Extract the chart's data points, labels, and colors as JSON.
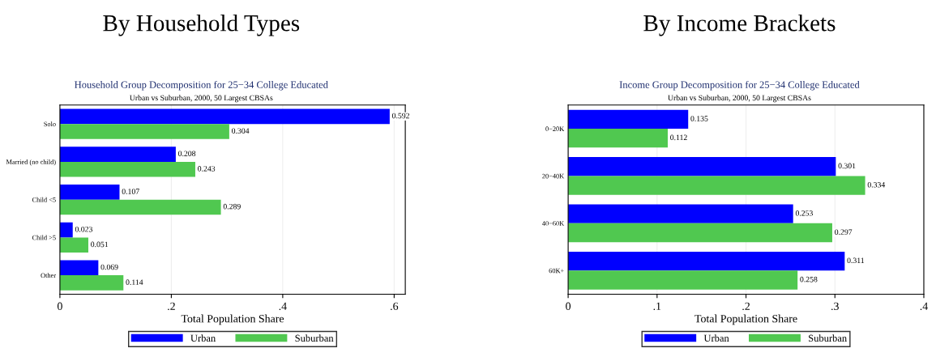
{
  "chart_data": [
    {
      "type": "bar",
      "orientation": "horizontal",
      "title": "By Household Types",
      "subtitle": "Household Group Decomposition for 25−34 College Educated",
      "annotations": [
        "Urban vs Suburban, 2000, 50 Largest CBSAs"
      ],
      "xlabel": "Total Population Share",
      "categories": [
        "Solo",
        "Married (no child)",
        "Child <5",
        "Child >5",
        "Other"
      ],
      "series": [
        {
          "name": "Urban",
          "color": "#0000ff",
          "values": [
            0.592,
            0.208,
            0.107,
            0.023,
            0.069
          ]
        },
        {
          "name": "Suburban",
          "color": "#50c850",
          "values": [
            0.304,
            0.243,
            0.289,
            0.051,
            0.114
          ]
        }
      ],
      "xlim": [
        0,
        0.62
      ],
      "xticks": [
        0,
        {
          "value": 0.2,
          "label": ".2"
        },
        {
          "value": 0.4,
          "label": ".4"
        },
        {
          "value": 0.6,
          "label": ".6"
        }
      ],
      "data_labels": true,
      "grid": "x",
      "legend": "bottom"
    },
    {
      "type": "bar",
      "orientation": "horizontal",
      "title": "By Income Brackets",
      "subtitle": "Income Group Decomposition for 25−34 College Educated",
      "annotations": [
        "Urban vs Suburban, 2000, 50 Largest CBSAs"
      ],
      "xlabel": "Total Population Share",
      "categories": [
        "0−20K",
        "20−40K",
        "40−60K",
        "60K+"
      ],
      "series": [
        {
          "name": "Urban",
          "color": "#0000ff",
          "values": [
            0.135,
            0.301,
            0.253,
            0.311
          ]
        },
        {
          "name": "Suburban",
          "color": "#50c850",
          "values": [
            0.112,
            0.334,
            0.297,
            0.258
          ]
        }
      ],
      "xlim": [
        0,
        0.4
      ],
      "xticks": [
        0,
        {
          "value": 0.1,
          "label": ".1"
        },
        {
          "value": 0.2,
          "label": ".2"
        },
        {
          "value": 0.3,
          "label": ".3"
        },
        {
          "value": 0.4,
          "label": ".4"
        }
      ],
      "data_labels": true,
      "grid": "x",
      "legend": "bottom"
    }
  ]
}
